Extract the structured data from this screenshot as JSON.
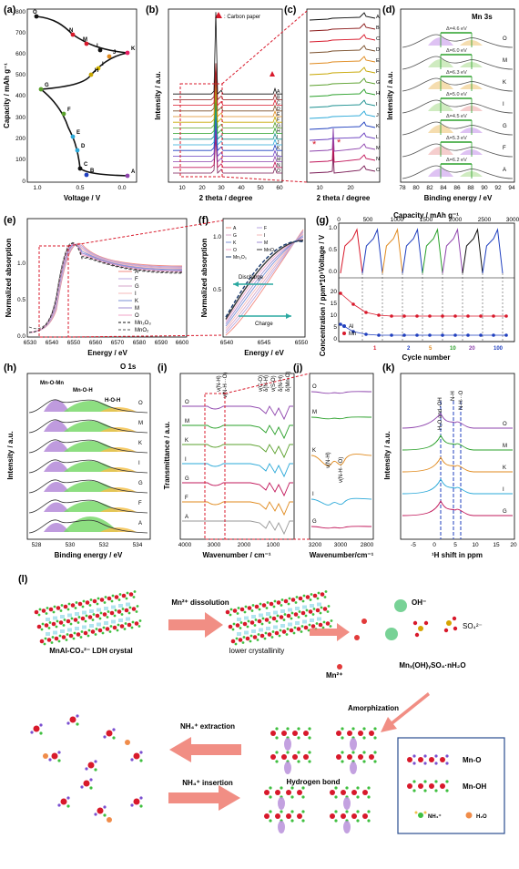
{
  "panels": {
    "a": {
      "tag": "(a)",
      "xlabel": "Voltage / V",
      "ylabel": "Capacity / mAh g⁻¹",
      "xticks": [
        "1.0",
        "0.5",
        "0.0"
      ],
      "yticks": [
        "0",
        "100",
        "200",
        "300",
        "400",
        "500",
        "600",
        "700",
        "800"
      ],
      "points": [
        "O",
        "N",
        "M",
        "L",
        "K",
        "J",
        "I",
        "H",
        "G",
        "F",
        "E",
        "D",
        "C",
        "B",
        "A"
      ]
    },
    "b": {
      "tag": "(b)",
      "xlabel": "2 theta / degree",
      "ylabel": "Intensity / a.u.",
      "legend": ": Carbon paper",
      "xticks": [
        "10",
        "20",
        "30",
        "40",
        "50",
        "60"
      ],
      "curves": [
        "O",
        "N",
        "M",
        "L",
        "K",
        "J",
        "I",
        "H",
        "G",
        "F",
        "E",
        "D",
        "C",
        "B",
        "A"
      ]
    },
    "c": {
      "tag": "(c)",
      "xlabel": "2 theta / degree",
      "xticks": [
        "10",
        "20"
      ],
      "curves": [
        "O",
        "N",
        "M",
        "L",
        "K",
        "J",
        "I",
        "H",
        "G",
        "F",
        "E",
        "D",
        "C",
        "B",
        "A"
      ]
    },
    "d": {
      "tag": "(d)",
      "title": "Mn 3s",
      "xlabel": "Binding energy / eV",
      "ylabel": "Intensity / a.u.",
      "xticks": [
        "78",
        "80",
        "82",
        "84",
        "86",
        "88",
        "90",
        "92",
        "94"
      ],
      "rows": [
        {
          "delta": "Δ=4.6 eV",
          "label": "O"
        },
        {
          "delta": "Δ=6.0 eV",
          "label": "M"
        },
        {
          "delta": "Δ=6.3 eV",
          "label": "K"
        },
        {
          "delta": "Δ=5.0 eV",
          "label": "I"
        },
        {
          "delta": "Δ=4.5 eV",
          "label": "G"
        },
        {
          "delta": "Δ=5.3 eV",
          "label": "F"
        },
        {
          "delta": "Δ=6.2 eV",
          "label": "A"
        }
      ]
    },
    "e": {
      "tag": "(e)",
      "xlabel": "Energy / eV",
      "ylabel": "Normalized absorption",
      "xticks": [
        "6530",
        "6540",
        "6550",
        "6560",
        "6570",
        "6580",
        "6590",
        "6600"
      ],
      "yticks": [
        "0.0",
        "0.5",
        "1.0"
      ],
      "legend": [
        "A",
        "F",
        "G",
        "I",
        "K",
        "M",
        "O",
        "Mn₂O₃",
        "MnO₂"
      ]
    },
    "f": {
      "tag": "(f)",
      "xlabel": "Energy / eV",
      "ylabel": "Normalized absorption",
      "xticks": [
        "6540",
        "6545",
        "6550"
      ],
      "yticks": [
        "0.5",
        "1.0"
      ],
      "legend": [
        "A",
        "F",
        "G",
        "I",
        "K",
        "M",
        "O",
        "MnO₂",
        "Mn₂O₃"
      ],
      "discharge": "Discharge",
      "charge": "Charge"
    },
    "g": {
      "tag": "(g)",
      "xlabel_top": "Capacity / mAh g⁻¹",
      "xlabel": "Cycle number",
      "ylabel_top": "Voltage / V",
      "ylabel_bottom": "Concentration / ppm*10³",
      "xticks_top": [
        "0",
        "500",
        "1000",
        "1500",
        "2000",
        "2500",
        "3000"
      ],
      "yticks_top": [
        "0.0",
        "0.5",
        "1.0"
      ],
      "yticks_bottom": [
        "0",
        "5",
        "10",
        "15",
        "20"
      ],
      "legend": [
        "Al",
        "Mn"
      ],
      "cycles": [
        "1",
        "2",
        "5",
        "10",
        "20",
        "100"
      ]
    },
    "h": {
      "tag": "(h)",
      "title": "O 1s",
      "xlabel": "Binding energy / eV",
      "ylabel": "Intensity / a.u.",
      "xticks": [
        "528",
        "530",
        "532",
        "534"
      ],
      "peaks": [
        "Mn-O-Mn",
        "Mn-O-H",
        "H-O-H"
      ],
      "rows": [
        "O",
        "M",
        "K",
        "I",
        "G",
        "F",
        "A"
      ]
    },
    "i": {
      "tag": "(i)",
      "xlabel": "Wavenumber / cm⁻¹",
      "ylabel": "Transmittance / a.u.",
      "xticks": [
        "4000",
        "3000",
        "2000",
        "1000"
      ],
      "bands": [
        "ν(N-H)",
        "ν(N-H···O)",
        "δ(N-H)",
        "δ(N-H)",
        "ν(C-O)",
        "ν(S-O)",
        "δ(Mn-O)"
      ],
      "rows": [
        "O",
        "M",
        "K",
        "I",
        "G",
        "F",
        "A"
      ]
    },
    "j": {
      "tag": "(j)",
      "xlabel": "Wavenumber/cm⁻¹",
      "xticks": [
        "3200",
        "3000",
        "2800"
      ],
      "rows": [
        "O",
        "M",
        "K",
        "I",
        "G"
      ],
      "ann1": "ν(N-H)",
      "ann2": "ν(N-H···O)"
    },
    "k": {
      "tag": "(k)",
      "xlabel": "¹H shift in ppm",
      "ylabel": "Intensity / a.u.",
      "xticks": [
        "-5",
        "0",
        "5",
        "10",
        "15",
        "20"
      ],
      "lines": [
        "H₂O and -OH",
        "N-H",
        "N-H···O"
      ],
      "rows": [
        "O",
        "M",
        "K",
        "I",
        "G"
      ]
    },
    "l": {
      "tag": "(l)",
      "crystal": "MnAl-CO₃²⁻ LDH crystal",
      "dissolution": "Mn²⁺ dissolution",
      "lowcryst": "lower crystallinity",
      "oh": "OH⁻",
      "so4": "SO₄²⁻",
      "mn2": "Mn²⁺",
      "product": "Mnₓ(OH)ᵧSO₄·nH₂O",
      "amorph": "Amorphization",
      "extraction": "NH₄⁺ extraction",
      "insertion": "NH₄⁺ insertion",
      "hbond": "Hydrogen bond",
      "legend": [
        "Mn-O",
        "Mn-OH",
        "NH₄⁺",
        "H₂O"
      ]
    }
  },
  "colors": {
    "black": "#111111",
    "red": "#d8192b",
    "blue": "#1f3fbf",
    "green": "#2aa02a",
    "orange": "#e08a1e",
    "purple": "#8e44ad",
    "arrow": "#ef7a6e"
  }
}
